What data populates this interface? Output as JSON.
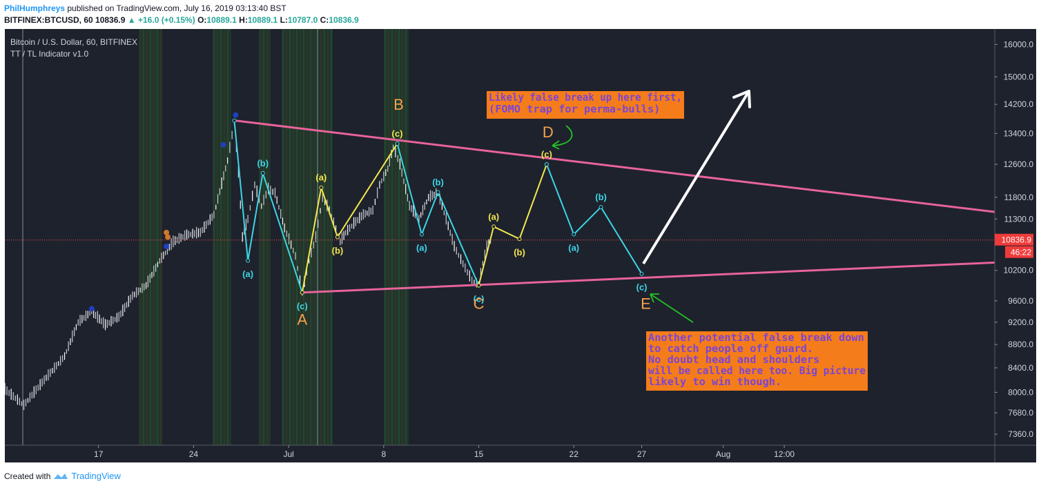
{
  "header": {
    "author": "PhilHumphreys",
    "published_text": "published on TradingView.com, July 16, 2019 03:13:40 BST",
    "symbol_line": "BITFINEX:BTCUSD, 60",
    "last_price": "10836.9",
    "change": "+16.0 (+0.15%)",
    "ohlc_labels": [
      "O:",
      "H:",
      "L:",
      "C:"
    ],
    "ohlc_values": [
      "10889.1",
      "10889.1",
      "10787.0",
      "10836.9"
    ]
  },
  "footer": {
    "created_with": "Created with",
    "brand": "TradingView"
  },
  "chart_data": {
    "type": "line",
    "title": "Bitcoin / U.S. Dollar, 60, BITFINEX",
    "subtitle": "TT / TL Indicator v1.0",
    "y_scale": "log",
    "ylim": [
      7200,
      16500
    ],
    "y_ticks": [
      16000,
      15000,
      14200,
      13400,
      12600,
      11800,
      11300,
      10200,
      9600,
      9200,
      8800,
      8400,
      8000,
      7680,
      7360
    ],
    "y_tick_labels": [
      "16000.0",
      "15000.0",
      "14200.0",
      "13400.0",
      "12600.0",
      "11800.0",
      "11300.0",
      "10200.0",
      "9600.0",
      "9200.0",
      "8800.0",
      "8400.0",
      "8000.0",
      "7680.0",
      "7360.0"
    ],
    "x_tick_labels": [
      "17",
      "24",
      "Jul",
      "8",
      "15",
      "22",
      "27",
      "Aug",
      "12:00"
    ],
    "x_tick_days": [
      17,
      24,
      31,
      38,
      45,
      52,
      57,
      63,
      67.5
    ],
    "xlim_days": [
      10.1,
      83
    ],
    "current_price": {
      "value": 10836.9,
      "label": "10836.9",
      "countdown": "46:22"
    },
    "colors": {
      "background": "#1e222d",
      "triangle": "#e8639b",
      "wave_cyan": "#3cd6e6",
      "wave_yellow": "#f2e94e",
      "letters": "#f7a24a",
      "callout_bg": "#f57c1a",
      "callout_text": "#7b45d6",
      "arrow_green": "#22c422",
      "arrow_white": "#ffffff",
      "price_line": "#ff5252"
    },
    "price_series": {
      "name": "BTCUSD",
      "x_days": [
        10.1,
        11.5,
        13,
        14.5,
        15.5,
        16.5,
        17.5,
        18.5,
        19.5,
        20.5,
        21.5,
        22.5,
        23.5,
        24.5,
        25.5,
        26.5,
        27,
        27.3,
        27.6,
        28,
        28.5,
        29,
        29.5,
        30,
        30.7,
        31.5,
        32,
        32.5,
        33,
        33.5,
        34,
        34.8,
        35.2,
        35.8,
        36.5,
        37.2,
        37.7,
        38.3,
        38.7,
        39.2,
        39.9,
        40.6,
        41.3,
        42,
        42.6,
        43.2,
        44,
        44.5,
        45,
        45.3,
        45.6,
        46
      ],
      "y_price": [
        8050,
        7800,
        8200,
        8600,
        9200,
        9400,
        9150,
        9300,
        9700,
        9900,
        10400,
        10800,
        10950,
        11000,
        11400,
        12700,
        13700,
        12400,
        10900,
        11300,
        12100,
        11600,
        12000,
        11900,
        11100,
        10500,
        9760,
        10400,
        10900,
        11800,
        11500,
        10800,
        11000,
        11200,
        11400,
        11500,
        12100,
        12500,
        13050,
        12600,
        11600,
        11300,
        11800,
        11900,
        11300,
        10700,
        10250,
        10000,
        9920,
        10350,
        10700,
        10889
      ]
    },
    "triangle": [
      {
        "name": "upper trendline",
        "points": [
          [
            27,
            13750
          ],
          [
            83,
            11460
          ]
        ]
      },
      {
        "name": "lower trendline",
        "points": [
          [
            32,
            9760
          ],
          [
            83,
            10360
          ]
        ]
      }
    ],
    "wave_labels": [
      {
        "text": "(a)",
        "color": "cyan",
        "x_day": 28,
        "y": 10400
      },
      {
        "text": "(b)",
        "color": "cyan",
        "x_day": 29.1,
        "y": 12380
      },
      {
        "text": "(c)",
        "color": "cyan",
        "x_day": 32,
        "y": 9760
      },
      {
        "text": "(a)",
        "color": "yellow",
        "x_day": 33.4,
        "y": 12030
      },
      {
        "text": "(b)",
        "color": "yellow",
        "x_day": 34.6,
        "y": 10900
      },
      {
        "text": "(c)",
        "color": "yellow",
        "x_day": 39,
        "y": 13130
      },
      {
        "text": "(a)",
        "color": "cyan",
        "x_day": 40.8,
        "y": 10960
      },
      {
        "text": "(b)",
        "color": "cyan",
        "x_day": 42,
        "y": 11920
      },
      {
        "text": "(c)",
        "color": "cyan",
        "x_day": 45,
        "y": 9900
      },
      {
        "text": "(a)",
        "color": "yellow",
        "x_day": 46.1,
        "y": 11130
      },
      {
        "text": "(b)",
        "color": "yellow",
        "x_day": 48,
        "y": 10860
      },
      {
        "text": "(c)",
        "color": "yellow",
        "x_day": 50,
        "y": 12600
      },
      {
        "text": "(a)",
        "color": "cyan",
        "x_day": 52,
        "y": 10960
      },
      {
        "text": "(b)",
        "color": "cyan",
        "x_day": 54,
        "y": 11570
      },
      {
        "text": "(c)",
        "color": "cyan",
        "x_day": 57,
        "y": 10130
      }
    ],
    "projection_paths": [
      {
        "color": "cyan",
        "points": [
          [
            27,
            13750
          ],
          [
            28,
            10400
          ],
          [
            29.1,
            12380
          ],
          [
            32,
            9760
          ]
        ]
      },
      {
        "color": "yellow",
        "points": [
          [
            32,
            9760
          ],
          [
            33.4,
            12030
          ],
          [
            34.6,
            10900
          ],
          [
            39,
            13130
          ]
        ]
      },
      {
        "color": "cyan",
        "points": [
          [
            39,
            13130
          ],
          [
            40.8,
            10960
          ],
          [
            42,
            11920
          ],
          [
            45,
            9900
          ]
        ]
      },
      {
        "color": "yellow",
        "points": [
          [
            45,
            9900
          ],
          [
            46.1,
            11130
          ],
          [
            48,
            10860
          ],
          [
            50,
            12600
          ]
        ]
      },
      {
        "color": "cyan",
        "points": [
          [
            50,
            12600
          ],
          [
            52,
            10960
          ],
          [
            54,
            11570
          ],
          [
            57,
            10130
          ]
        ]
      }
    ],
    "wave_letters": [
      {
        "text": "A",
        "x_day": 32,
        "y": 9150
      },
      {
        "text": "B",
        "x_day": 39.1,
        "y": 14050
      },
      {
        "text": "C",
        "x_day": 45,
        "y": 9450
      },
      {
        "text": "D",
        "x_day": 50.1,
        "y": 13300
      },
      {
        "text": "E",
        "x_day": 57.3,
        "y": 9450
      }
    ],
    "annotations": [
      {
        "name": "top-callout",
        "lines": [
          "Likely false break up here first,",
          "(FOMO trap for perma-bulls)"
        ]
      },
      {
        "name": "bottom-callout",
        "lines": [
          "Another potential false break down",
          "to catch people off guard.",
          "No doubt head and shoulders",
          "will be called here too. Big picture",
          "likely to win though."
        ]
      }
    ],
    "grid": false,
    "legend": "none"
  }
}
